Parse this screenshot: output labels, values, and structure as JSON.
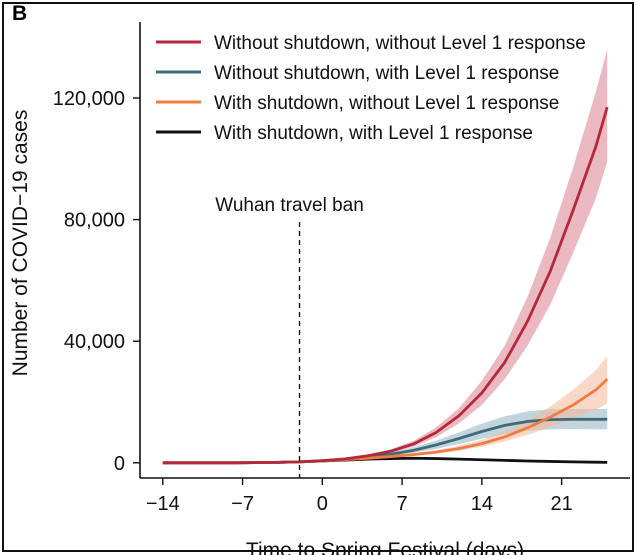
{
  "panel_label": "B",
  "chart_data": {
    "type": "line",
    "xlabel": "Time to Spring Festival (days)",
    "ylabel": "Number of COVID−19 cases",
    "xlim": [
      -16,
      27
    ],
    "ylim": [
      -5000,
      145000
    ],
    "xticks": [
      -14,
      -7,
      0,
      7,
      14,
      21
    ],
    "xtick_labels": [
      "−14",
      "−7",
      "0",
      "7",
      "14",
      "21"
    ],
    "yticks": [
      0,
      40000,
      80000,
      120000
    ],
    "ytick_labels": [
      "0",
      "40,000",
      "80,000",
      "120,000"
    ],
    "legend_position": "top-right",
    "annotation": {
      "text": "Wuhan travel ban",
      "x": -2
    },
    "x": [
      -14,
      -12,
      -10,
      -8,
      -6,
      -4,
      -2,
      0,
      2,
      4,
      6,
      8,
      10,
      12,
      14,
      16,
      18,
      20,
      22,
      24,
      25
    ],
    "series": [
      {
        "name": "Without shutdown, without Level 1 response",
        "color": "#b5283c",
        "band_color": "#d9808f",
        "values": [
          0,
          0,
          0,
          0,
          50,
          150,
          300,
          700,
          1300,
          2300,
          3800,
          6200,
          10000,
          15500,
          23000,
          33000,
          46500,
          63000,
          83000,
          104000,
          117000
        ],
        "lower": [
          0,
          0,
          0,
          0,
          40,
          120,
          250,
          600,
          1100,
          2000,
          3300,
          5300,
          8500,
          13000,
          19000,
          27500,
          38500,
          52000,
          69000,
          87000,
          99000
        ],
        "upper": [
          0,
          0,
          0,
          0,
          60,
          180,
          350,
          800,
          1500,
          2650,
          4400,
          7200,
          11700,
          18000,
          27000,
          38500,
          54500,
          74000,
          97000,
          122000,
          136000
        ]
      },
      {
        "name": "Without shutdown, with Level 1 response",
        "color": "#3e6b78",
        "band_color": "#8fb3bf",
        "values": [
          0,
          0,
          0,
          0,
          50,
          150,
          300,
          650,
          1100,
          1800,
          2800,
          4100,
          5900,
          8000,
          10300,
          12300,
          13600,
          14200,
          14300,
          14300,
          14300
        ],
        "lower": [
          0,
          0,
          0,
          0,
          40,
          120,
          250,
          550,
          950,
          1550,
          2300,
          3300,
          4600,
          6200,
          7900,
          9400,
          10500,
          11000,
          11100,
          11000,
          11000
        ],
        "upper": [
          0,
          0,
          0,
          0,
          60,
          180,
          350,
          750,
          1300,
          2100,
          3400,
          5100,
          7300,
          10000,
          12900,
          15300,
          16900,
          17600,
          17700,
          17700,
          17700
        ]
      },
      {
        "name": "With shutdown, without Level 1 response",
        "color": "#ee7c45",
        "band_color": "#f6b899",
        "values": [
          0,
          0,
          0,
          0,
          50,
          150,
          300,
          650,
          1050,
          1500,
          2050,
          2700,
          3500,
          4700,
          6300,
          8500,
          11500,
          15000,
          19000,
          24000,
          27500
        ],
        "lower": [
          0,
          0,
          0,
          0,
          40,
          120,
          250,
          550,
          900,
          1300,
          1750,
          2300,
          3000,
          4000,
          5300,
          7000,
          9200,
          11800,
          14500,
          17500,
          19500
        ],
        "upper": [
          0,
          0,
          0,
          0,
          60,
          180,
          350,
          750,
          1200,
          1750,
          2400,
          3200,
          4200,
          5600,
          7600,
          10300,
          14000,
          18500,
          24000,
          30500,
          35000
        ]
      },
      {
        "name": "With shutdown, with Level 1 response",
        "color": "#111111",
        "values": [
          0,
          0,
          0,
          0,
          50,
          150,
          300,
          600,
          900,
          1200,
          1400,
          1500,
          1400,
          1200,
          1000,
          800,
          600,
          450,
          300,
          200,
          150
        ]
      }
    ]
  }
}
